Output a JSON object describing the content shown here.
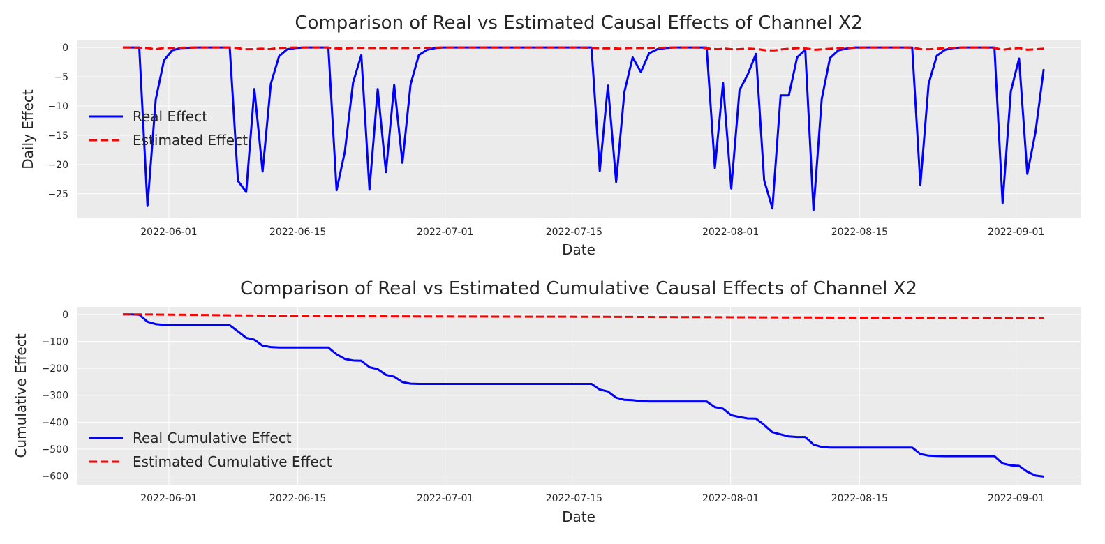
{
  "chart_data": [
    {
      "type": "line",
      "title": "Comparison of Real vs Estimated Causal Effects of Channel X2",
      "xlabel": "Date",
      "ylabel": "Daily Effect",
      "x_ticks": [
        "2022-06-01",
        "2022-06-15",
        "2022-07-01",
        "2022-07-15",
        "2022-08-01",
        "2022-08-15",
        "2022-09-01"
      ],
      "y_ticks": [
        0,
        -5,
        -10,
        -15,
        -20,
        -25
      ],
      "x_start": "2022-05-27",
      "x_end": "2022-09-04",
      "xlim": [
        "2022-05-22",
        "2022-09-08"
      ],
      "ylim": [
        -29.2,
        1.2
      ],
      "grid": true,
      "legend_position": "center-left",
      "series": [
        {
          "name": "Real Effect",
          "color": "#0000ff",
          "style": "solid",
          "values": [
            0,
            0,
            0,
            -27.1,
            -8.9,
            -2.2,
            -0.5,
            -0.1,
            -0.05,
            0,
            0,
            0,
            0,
            0,
            -22.8,
            -24.7,
            -7.1,
            -21.2,
            -6.2,
            -1.5,
            -0.3,
            -0.1,
            0,
            0,
            0,
            0,
            -24.4,
            -17.8,
            -6,
            -1.3,
            -24.3,
            -7.1,
            -21.3,
            -6.4,
            -19.7,
            -6.3,
            -1.3,
            -0.4,
            -0.1,
            0,
            0,
            0,
            0,
            0,
            0,
            0,
            0,
            0,
            0,
            0,
            0,
            0,
            0,
            0,
            0,
            0,
            0,
            0,
            -21.1,
            -6.5,
            -23,
            -7.6,
            -1.7,
            -4.2,
            -1,
            -0.3,
            -0.1,
            0,
            0,
            0,
            0,
            0,
            -20.6,
            -6.1,
            -24.1,
            -7.3,
            -4.6,
            -1.1,
            -22.7,
            -27.5,
            -8.2,
            -8.2,
            -1.7,
            -0.4,
            -27.8,
            -8.8,
            -1.8,
            -0.5,
            -0.2,
            0,
            0,
            0,
            0,
            0,
            0,
            0,
            0,
            -23.5,
            -6.2,
            -1.4,
            -0.4,
            -0.1,
            0,
            0,
            0,
            0,
            0,
            -26.6,
            -7.5,
            -1.9,
            -21.6,
            -14.4,
            -3.7
          ]
        },
        {
          "name": "Estimated Effect",
          "color": "#ff0000",
          "style": "dashed",
          "values": [
            0,
            0,
            -0.05,
            -0.1,
            -0.3,
            -0.1,
            -0.1,
            -0.05,
            0,
            0,
            0,
            0,
            0,
            0,
            -0.1,
            -0.3,
            -0.3,
            -0.2,
            -0.3,
            -0.1,
            -0.05,
            0,
            0,
            0,
            0,
            0,
            -0.15,
            -0.2,
            -0.1,
            -0.05,
            -0.1,
            -0.1,
            -0.1,
            -0.1,
            -0.1,
            -0.1,
            -0.05,
            -0.05,
            -0.05,
            0,
            0,
            0,
            0,
            0,
            0,
            0,
            0,
            0,
            0,
            0,
            0,
            0,
            0,
            0,
            0,
            0,
            0,
            -0.05,
            -0.1,
            -0.15,
            -0.15,
            -0.2,
            -0.1,
            -0.1,
            -0.1,
            -0.05,
            -0.05,
            0,
            0,
            0,
            0,
            -0.05,
            -0.2,
            -0.3,
            -0.2,
            -0.35,
            -0.25,
            -0.2,
            -0.3,
            -0.5,
            -0.5,
            -0.3,
            -0.2,
            -0.1,
            -0.2,
            -0.4,
            -0.3,
            -0.2,
            -0.1,
            -0.1,
            -0.05,
            0,
            0,
            0,
            0,
            0,
            0,
            -0.05,
            -0.3,
            -0.3,
            -0.2,
            -0.1,
            -0.05,
            0,
            0,
            0,
            0,
            -0.1,
            -0.4,
            -0.2,
            -0.1,
            -0.4,
            -0.3,
            -0.2
          ]
        }
      ]
    },
    {
      "type": "line",
      "title": "Comparison of Real vs Estimated Cumulative Causal Effects of Channel X2",
      "xlabel": "Date",
      "ylabel": "Cumulative Effect",
      "x_ticks": [
        "2022-06-01",
        "2022-06-15",
        "2022-07-01",
        "2022-07-15",
        "2022-08-01",
        "2022-08-15",
        "2022-09-01"
      ],
      "y_ticks": [
        0,
        -100,
        -200,
        -300,
        -400,
        -500,
        -600
      ],
      "x_start": "2022-05-27",
      "x_end": "2022-09-04",
      "xlim": [
        "2022-05-22",
        "2022-09-08"
      ],
      "ylim": [
        -632,
        28
      ],
      "grid": true,
      "legend_position": "lower-left",
      "series": [
        {
          "name": "Real Cumulative Effect",
          "color": "#0000ff",
          "style": "solid",
          "values": [
            0,
            0,
            -1,
            -27,
            -36,
            -39,
            -40,
            -40,
            -40,
            -40,
            -40,
            -40,
            -40,
            -40,
            -63,
            -87,
            -94,
            -116,
            -121,
            -123,
            -123,
            -123,
            -123,
            -123,
            -123,
            -123,
            -148,
            -165,
            -171,
            -172,
            -196,
            -203,
            -224,
            -231,
            -251,
            -257,
            -258,
            -258,
            -258,
            -258,
            -258,
            -258,
            -258,
            -258,
            -258,
            -258,
            -258,
            -258,
            -258,
            -258,
            -258,
            -258,
            -258,
            -258,
            -258,
            -258,
            -258,
            -258,
            -279,
            -286,
            -309,
            -317,
            -318,
            -322,
            -323,
            -323,
            -323,
            -323,
            -323,
            -323,
            -323,
            -323,
            -344,
            -350,
            -374,
            -381,
            -386,
            -387,
            -410,
            -437,
            -445,
            -453,
            -455,
            -455,
            -483,
            -492,
            -494,
            -494,
            -494,
            -494,
            -494,
            -494,
            -494,
            -494,
            -494,
            -494,
            -494,
            -518,
            -524,
            -525,
            -526,
            -526,
            -526,
            -526,
            -526,
            -526,
            -526,
            -553,
            -560,
            -562,
            -584,
            -598,
            -602
          ]
        },
        {
          "name": "Estimated Cumulative Effect",
          "color": "#ff0000",
          "style": "dashed",
          "values": [
            0,
            0,
            -0.05,
            -0.1,
            -0.3,
            -0.6,
            -0.9,
            -1.2,
            -1.5,
            -1.8,
            -2.1,
            -2.4,
            -2.7,
            -3,
            -3.3,
            -3.6,
            -3.9,
            -4.1,
            -4.3,
            -4.5,
            -4.7,
            -4.9,
            -5.1,
            -5.3,
            -5.5,
            -5.7,
            -5.9,
            -6.1,
            -6.3,
            -6.5,
            -6.7,
            -6.8,
            -6.9,
            -7,
            -7.1,
            -7.2,
            -7.3,
            -7.4,
            -7.5,
            -7.6,
            -7.7,
            -7.8,
            -7.9,
            -8,
            -8,
            -8.1,
            -8.1,
            -8.2,
            -8.2,
            -8.3,
            -8.3,
            -8.4,
            -8.4,
            -8.5,
            -8.5,
            -8.6,
            -8.6,
            -8.7,
            -8.8,
            -8.9,
            -9,
            -9.1,
            -9.2,
            -9.3,
            -9.4,
            -9.5,
            -9.6,
            -9.7,
            -9.8,
            -9.9,
            -10,
            -10.1,
            -10.2,
            -10.3,
            -10.4,
            -10.5,
            -10.6,
            -10.7,
            -10.8,
            -10.9,
            -11,
            -11.1,
            -11.2,
            -11.3,
            -11.4,
            -11.5,
            -11.6,
            -11.7,
            -11.8,
            -11.9,
            -12,
            -12.1,
            -12.2,
            -12.3,
            -12.4,
            -12.5,
            -12.6,
            -12.7,
            -12.8,
            -12.9,
            -13,
            -13.1,
            -13.2,
            -13.3,
            -13.4,
            -13.5,
            -13.6,
            -13.7,
            -13.8,
            -13.9,
            -14,
            -14.1,
            -14.2,
            -14.3,
            -14.4,
            -14.5,
            -14.6
          ]
        }
      ]
    }
  ]
}
